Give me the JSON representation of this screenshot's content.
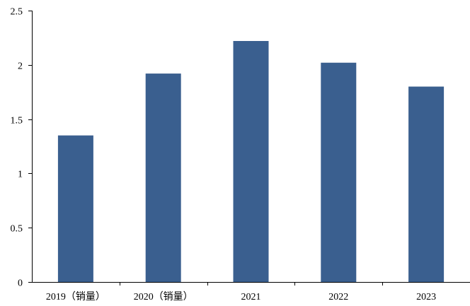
{
  "colors": {
    "bar": "#3A5F8F",
    "axis": "#000000",
    "background": "#FFFFFF"
  },
  "chart_data": {
    "type": "bar",
    "title": "",
    "xlabel": "",
    "ylabel": "",
    "categories": [
      "2019（销量）",
      "2020（销量）",
      "2021",
      "2022",
      "2023"
    ],
    "values": [
      1.35,
      1.92,
      2.22,
      2.02,
      1.8
    ],
    "ylim": [
      0,
      2.5
    ],
    "yticks": [
      "0",
      "0.5",
      "1",
      "1.5",
      "2",
      "2.5"
    ],
    "grid": false,
    "legend": "none"
  }
}
